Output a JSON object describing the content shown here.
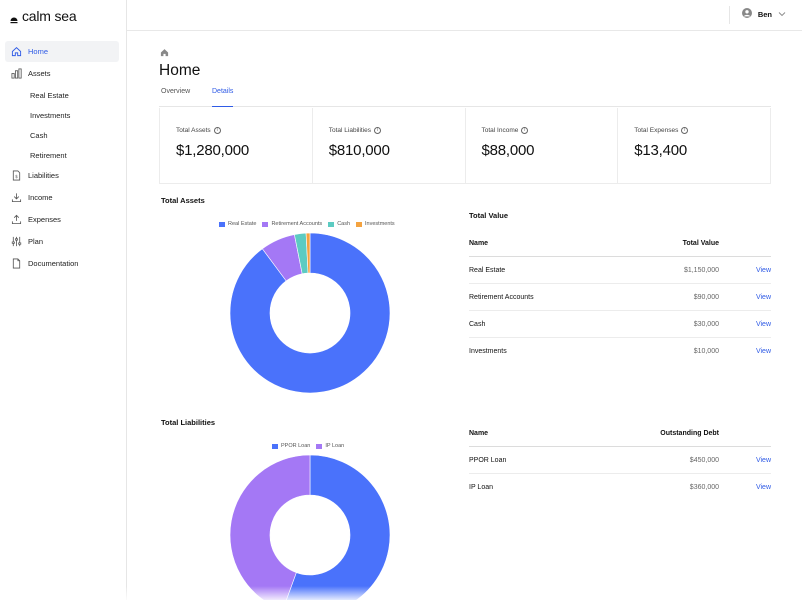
{
  "app": {
    "name": "calm sea"
  },
  "user": {
    "name": "Ben"
  },
  "sidebar": {
    "items": [
      {
        "label": "Home",
        "icon": "home-icon",
        "active": true
      },
      {
        "label": "Assets",
        "icon": "bar-chart-icon"
      },
      {
        "label": "Liabilities",
        "icon": "document-icon"
      },
      {
        "label": "Income",
        "icon": "download-icon"
      },
      {
        "label": "Expenses",
        "icon": "upload-icon"
      },
      {
        "label": "Plan",
        "icon": "sliders-icon"
      },
      {
        "label": "Documentation",
        "icon": "file-icon"
      }
    ],
    "asset_subitems": [
      "Real Estate",
      "Investments",
      "Cash",
      "Retirement"
    ]
  },
  "page": {
    "title": "Home"
  },
  "tabs": [
    {
      "label": "Overview",
      "active": false
    },
    {
      "label": "Details",
      "active": true
    }
  ],
  "stats": [
    {
      "label": "Total Assets",
      "value": "$1,280,000"
    },
    {
      "label": "Total Liabilities",
      "value": "$810,000"
    },
    {
      "label": "Total Income",
      "value": "$88,000"
    },
    {
      "label": "Total Expenses",
      "value": "$13,400"
    }
  ],
  "assets_section": {
    "title": "Total Assets"
  },
  "liabilities_section": {
    "title": "Total Liabilities"
  },
  "value_table": {
    "title": "Total Value",
    "headers": [
      "Name",
      "Total Value"
    ],
    "action_label": "View",
    "rows": [
      {
        "name": "Real Estate",
        "value": "$1,150,000"
      },
      {
        "name": "Retirement Accounts",
        "value": "$90,000"
      },
      {
        "name": "Cash",
        "value": "$30,000"
      },
      {
        "name": "Investments",
        "value": "$10,000"
      }
    ]
  },
  "debt_table": {
    "headers": [
      "Name",
      "Outstanding Debt"
    ],
    "action_label": "View",
    "rows": [
      {
        "name": "PPOR Loan",
        "value": "$450,000"
      },
      {
        "name": "IP Loan",
        "value": "$360,000"
      }
    ]
  },
  "colors": {
    "accent": "#2f5be6",
    "real_estate": "#4a72fb",
    "retirement": "#a478f5",
    "cash": "#5ccbc2",
    "investments": "#f4a340",
    "ppor": "#4a72fb",
    "ip": "#a478f5"
  },
  "chart_data": [
    {
      "type": "pie",
      "title": "Total Assets",
      "categories": [
        "Real Estate",
        "Retirement Accounts",
        "Cash",
        "Investments"
      ],
      "values": [
        1150000,
        90000,
        30000,
        10000
      ],
      "colors": [
        "#4a72fb",
        "#a478f5",
        "#5ccbc2",
        "#f4a340"
      ],
      "legend": "top"
    },
    {
      "type": "pie",
      "title": "Total Liabilities",
      "categories": [
        "PPOR Loan",
        "IP Loan"
      ],
      "values": [
        450000,
        360000
      ],
      "colors": [
        "#4a72fb",
        "#a478f5"
      ],
      "legend": "top"
    }
  ]
}
